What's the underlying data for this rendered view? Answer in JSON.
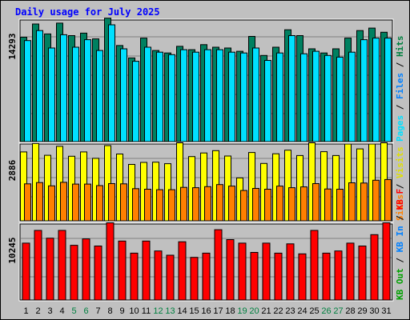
{
  "chart_data": {
    "type": "bar",
    "title": "Daily usage for July 2025",
    "categories": [
      "1",
      "2",
      "3",
      "4",
      "5",
      "6",
      "7",
      "8",
      "9",
      "10",
      "11",
      "12",
      "13",
      "14",
      "15",
      "16",
      "17",
      "18",
      "19",
      "20",
      "21",
      "22",
      "23",
      "24",
      "25",
      "26",
      "27",
      "28",
      "29",
      "30",
      "31"
    ],
    "weekend_days": [
      "5",
      "6",
      "12",
      "13",
      "19",
      "20",
      "26",
      "27"
    ],
    "panels": [
      {
        "id": "hits",
        "ymax_label": "14293",
        "ymax": 14293,
        "side_labels": [
          {
            "text": "Hits",
            "color": "#008040"
          },
          {
            "text": " / ",
            "color": "#000000"
          },
          {
            "text": "Files",
            "color": "#0080FF"
          },
          {
            "text": " / ",
            "color": "#000000"
          },
          {
            "text": "Pages",
            "color": "#00E0FF"
          }
        ],
        "series": [
          {
            "name": "Hits",
            "color": "#008060",
            "values": [
              12600,
              14200,
              13000,
              14300,
              12800,
              13100,
              12400,
              14900,
              11600,
              10100,
              12500,
              11000,
              10700,
              11500,
              11100,
              11700,
              11400,
              11300,
              10900,
              12700,
              10400,
              11400,
              13500,
              12800,
              11200,
              10700,
              11200,
              12500,
              13400,
              13700,
              13200
            ]
          },
          {
            "name": "Files",
            "color": "#00E0FF",
            "values": [
              12200,
              13400,
              11300,
              12900,
              11400,
              12300,
              11000,
              14100,
              11200,
              9700,
              11400,
              10800,
              10500,
              11100,
              10800,
              11100,
              11100,
              10800,
              10700,
              11300,
              9800,
              10700,
              12800,
              10600,
              10900,
              10400,
              10200,
              10800,
              12300,
              12500,
              12500
            ]
          },
          {
            "name": "Pages",
            "color": "#00E0FF",
            "values": []
          }
        ]
      },
      {
        "id": "visits",
        "ymax_label": "2886",
        "ymax": 2886,
        "side_labels": [
          {
            "text": "Visits",
            "color": "#E0E000"
          },
          {
            "text": " / ",
            "color": "#000000"
          },
          {
            "text": "Sites",
            "color": "#FF8000"
          }
        ],
        "series": [
          {
            "name": "Visits",
            "color": "#FFFF00",
            "values": [
              2700,
              3030,
              2570,
              2920,
              2530,
              2700,
              2450,
              2950,
              2620,
              2210,
              2290,
              2300,
              2240,
              3150,
              2520,
              2660,
              2750,
              2540,
              1680,
              2680,
              2250,
              2630,
              2770,
              2560,
              3560,
              2710,
              2560,
              3010,
              2820,
              3010,
              3450
            ]
          },
          {
            "name": "Sites",
            "color": "#FF8000",
            "values": [
              1450,
              1500,
              1370,
              1510,
              1440,
              1440,
              1380,
              1460,
              1450,
              1260,
              1240,
              1220,
              1220,
              1310,
              1300,
              1340,
              1420,
              1360,
              1190,
              1270,
              1240,
              1360,
              1300,
              1330,
              1460,
              1250,
              1240,
              1490,
              1480,
              1590,
              1620
            ]
          }
        ]
      },
      {
        "id": "kbytes",
        "ymax_label": "10245",
        "ymax": 10245,
        "side_labels": [
          {
            "text": "KB F",
            "color": "#FF0000"
          },
          {
            "text": " / ",
            "color": "#000000"
          },
          {
            "text": "KB In",
            "color": "#0080FF"
          },
          {
            "text": " / ",
            "color": "#000000"
          },
          {
            "text": "KB Out",
            "color": "#00A000"
          }
        ],
        "series": [
          {
            "name": "KB F",
            "color": "#FF0000",
            "values": [
              8000,
              9800,
              8700,
              9800,
              7700,
              8600,
              7600,
              14400,
              8300,
              6600,
              8300,
              6900,
              6300,
              8200,
              6000,
              6600,
              9900,
              8500,
              8000,
              6700,
              8000,
              6600,
              7900,
              6500,
              9800,
              6600,
              6900,
              8000,
              7600,
              9200,
              11100
            ]
          }
        ]
      }
    ],
    "grid": true
  }
}
